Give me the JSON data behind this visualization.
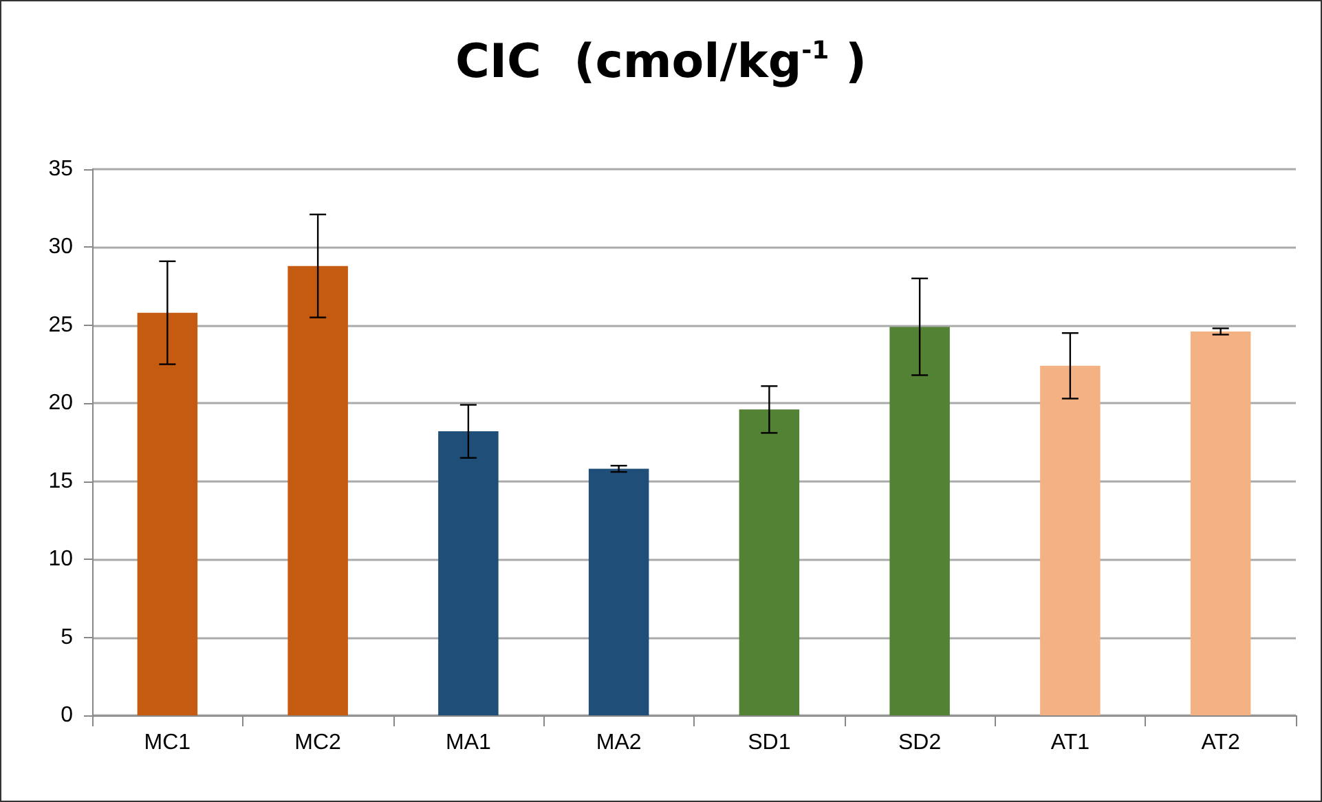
{
  "chart_data": {
    "type": "bar",
    "title": "CIC  (cmol/kg$^{-1}$ )",
    "categories": [
      "MC1",
      "MC2",
      "MA1",
      "MA2",
      "SD1",
      "SD2",
      "AT1",
      "AT2"
    ],
    "values": [
      25.8,
      28.8,
      18.2,
      15.8,
      19.6,
      24.9,
      22.4,
      24.6
    ],
    "colors": [
      "#c55a11",
      "#c55a11",
      "#1f4e79",
      "#1f4e79",
      "#548235",
      "#548235",
      "#f4b183",
      "#f4b183"
    ],
    "errors": [
      3.3,
      3.3,
      1.7,
      0.2,
      1.5,
      3.1,
      2.1,
      0.2
    ],
    "ylim": [
      0,
      35
    ],
    "yticks": [
      0,
      5,
      10,
      15,
      20,
      25,
      30,
      35
    ],
    "grid": "y"
  }
}
